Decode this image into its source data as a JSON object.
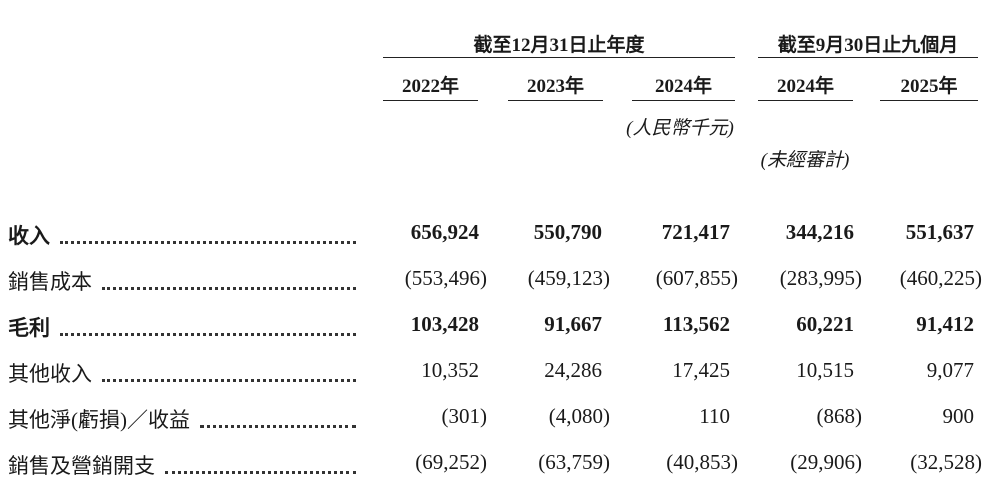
{
  "header": {
    "groups": [
      {
        "label": "截至12月31日止年度"
      },
      {
        "label": "截至9月30日止九個月"
      }
    ],
    "years": [
      "2022年",
      "2023年",
      "2024年",
      "2024年",
      "2025年"
    ],
    "notes": [
      "(人民幣千元)",
      "(未經審計)"
    ]
  },
  "table": {
    "rows": [
      {
        "label": "收入",
        "bold": true,
        "values": [
          "656,924",
          "550,790",
          "721,417",
          "344,216",
          "551,637"
        ]
      },
      {
        "label": "銷售成本",
        "bold": false,
        "values": [
          "(553,496)",
          "(459,123)",
          "(607,855)",
          "(283,995)",
          "(460,225)"
        ]
      },
      {
        "label": "毛利",
        "bold": true,
        "values": [
          "103,428",
          "91,667",
          "113,562",
          "60,221",
          "91,412"
        ]
      },
      {
        "label": "其他收入",
        "bold": false,
        "values": [
          "10,352",
          "24,286",
          "17,425",
          "10,515",
          "9,077"
        ]
      },
      {
        "label": "其他淨(虧損)／收益",
        "bold": false,
        "values": [
          "(301)",
          "(4,080)",
          "110",
          "(868)",
          "900"
        ]
      },
      {
        "label": "銷售及營銷開支",
        "bold": false,
        "values": [
          "(69,252)",
          "(63,759)",
          "(40,853)",
          "(29,906)",
          "(32,528)"
        ]
      }
    ]
  }
}
